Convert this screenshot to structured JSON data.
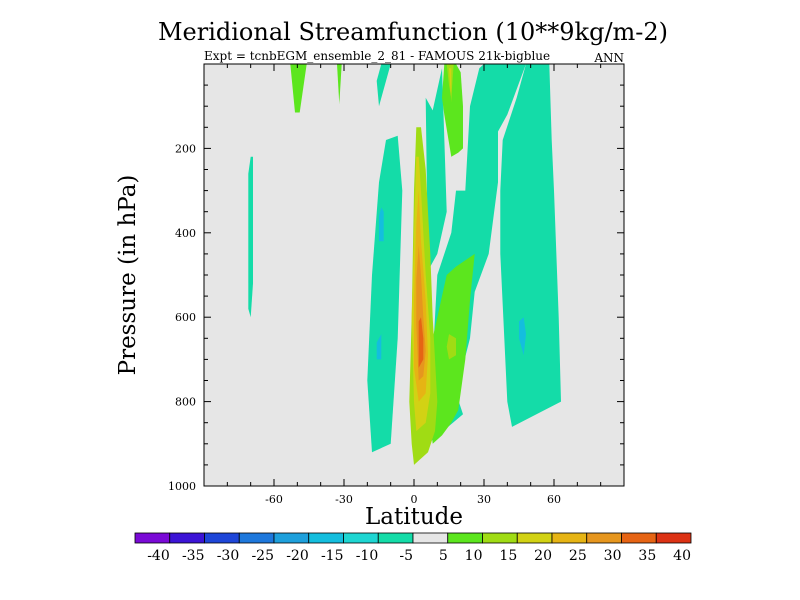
{
  "chart_data": {
    "type": "contour",
    "title": "Meridional Streamfunction (10**9kg/m-2)",
    "subtitle_left": "Expt = tcnbEGM_ensemble_2_81 - FAMOUS 21k-bigblue",
    "subtitle_right": "ANN",
    "xlabel": "Latitude",
    "ylabel": "Pressure (in hPa)",
    "xlim": [
      -90,
      90
    ],
    "ylim": [
      0,
      1000
    ],
    "y_inverted": true,
    "x_ticks": [
      {
        "value": -60,
        "label": "-60"
      },
      {
        "value": -30,
        "label": "-30"
      },
      {
        "value": 0,
        "label": "0"
      },
      {
        "value": 30,
        "label": "30"
      },
      {
        "value": 60,
        "label": "60"
      }
    ],
    "y_ticks": [
      {
        "value": 200,
        "label": "200"
      },
      {
        "value": 400,
        "label": "400"
      },
      {
        "value": 600,
        "label": "600"
      },
      {
        "value": 800,
        "label": "800"
      },
      {
        "value": 1000,
        "label": "1000"
      }
    ],
    "background_color": "#e6e6e6",
    "colorbar": {
      "levels": [
        "-40",
        "-35",
        "-30",
        "-25",
        "-20",
        "-15",
        "-10",
        "-5",
        "5",
        "10",
        "15",
        "20",
        "25",
        "30",
        "35",
        "40"
      ],
      "colors": [
        "#7a0ad6",
        "#3c14d6",
        "#1e46d8",
        "#1e78dc",
        "#1ea0dc",
        "#14bede",
        "#1ed6d2",
        "#14dca8",
        "#e6e6e6",
        "#5ce61e",
        "#a0dc14",
        "#d2d214",
        "#e6b414",
        "#e6961e",
        "#e66414",
        "#dc3214"
      ]
    },
    "regions": [
      {
        "color": "#14dca8",
        "points": [
          [
            -18,
            920
          ],
          [
            -10,
            900
          ],
          [
            -7,
            650
          ],
          [
            -5,
            300
          ],
          [
            -7,
            170
          ],
          [
            -12,
            180
          ],
          [
            -15,
            280
          ],
          [
            -18,
            500
          ],
          [
            -20,
            750
          ]
        ]
      },
      {
        "color": "#14dca8",
        "points": [
          [
            -15,
            100
          ],
          [
            -10,
            0
          ],
          [
            -14,
            0
          ],
          [
            -16,
            40
          ]
        ]
      },
      {
        "color": "#14dca8",
        "points": [
          [
            6,
            490
          ],
          [
            10,
            450
          ],
          [
            14,
            350
          ],
          [
            12,
            10
          ],
          [
            8,
            110
          ],
          [
            5,
            80
          ]
        ]
      },
      {
        "color": "#14dca8",
        "points": [
          [
            21,
            830
          ],
          [
            18,
            780
          ],
          [
            24,
            650
          ],
          [
            26,
            540
          ],
          [
            32,
            450
          ],
          [
            36,
            280
          ],
          [
            36,
            160
          ],
          [
            40,
            120
          ],
          [
            48,
            0
          ],
          [
            30,
            0
          ],
          [
            28,
            10
          ],
          [
            24,
            100
          ],
          [
            22,
            300
          ],
          [
            18,
            300
          ],
          [
            16,
            400
          ],
          [
            10,
            500
          ],
          [
            8,
            700
          ],
          [
            6,
            900
          ]
        ]
      },
      {
        "color": "#14dca8",
        "points": [
          [
            42,
            860
          ],
          [
            56,
            820
          ],
          [
            63,
            800
          ],
          [
            62,
            600
          ],
          [
            60,
            300
          ],
          [
            59,
            180
          ],
          [
            58,
            0
          ],
          [
            48,
            0
          ],
          [
            44,
            80
          ],
          [
            38,
            180
          ],
          [
            37,
            300
          ],
          [
            37,
            450
          ],
          [
            40,
            800
          ]
        ]
      },
      {
        "color": "#14dca8",
        "points": [
          [
            -71,
            580
          ],
          [
            -70,
            600
          ],
          [
            -69,
            520
          ],
          [
            -69,
            400
          ],
          [
            -69,
            250
          ],
          [
            -69,
            220
          ],
          [
            -70,
            220
          ],
          [
            -71,
            260
          ],
          [
            -71,
            420
          ]
        ]
      },
      {
        "color": "#14bede",
        "points": [
          [
            -15,
            360
          ],
          [
            -14,
            340
          ],
          [
            -13,
            350
          ],
          [
            -13,
            420
          ],
          [
            -15,
            420
          ]
        ]
      },
      {
        "color": "#14bede",
        "points": [
          [
            -16,
            660
          ],
          [
            -14,
            640
          ],
          [
            -14,
            700
          ],
          [
            -16,
            700
          ]
        ]
      },
      {
        "color": "#14bede",
        "points": [
          [
            45,
            610
          ],
          [
            47,
            600
          ],
          [
            48,
            640
          ],
          [
            47,
            690
          ],
          [
            45,
            650
          ]
        ]
      },
      {
        "color": "#5ce61e",
        "points": [
          [
            8,
            900
          ],
          [
            12,
            880
          ],
          [
            16,
            850
          ],
          [
            19,
            820
          ],
          [
            22,
            700
          ],
          [
            24,
            560
          ],
          [
            26,
            450
          ],
          [
            18,
            480
          ],
          [
            14,
            500
          ],
          [
            12,
            550
          ],
          [
            8,
            650
          ],
          [
            6,
            800
          ]
        ]
      },
      {
        "color": "#5ce61e",
        "points": [
          [
            19,
            210
          ],
          [
            21,
            200
          ],
          [
            21,
            100
          ],
          [
            20,
            20
          ],
          [
            18,
            0
          ],
          [
            13,
            0
          ],
          [
            12,
            80
          ],
          [
            13,
            120
          ],
          [
            16,
            220
          ]
        ]
      },
      {
        "color": "#5ce61e",
        "points": [
          [
            -51,
            115
          ],
          [
            -49,
            115
          ],
          [
            -46,
            0
          ],
          [
            -53,
            0
          ]
        ]
      },
      {
        "color": "#5ce61e",
        "points": [
          [
            -32,
            95
          ],
          [
            -31,
            0
          ],
          [
            -33,
            0
          ]
        ]
      },
      {
        "color": "#a0dc14",
        "points": [
          [
            15,
            700
          ],
          [
            18,
            690
          ],
          [
            18,
            650
          ],
          [
            15,
            640
          ],
          [
            14,
            670
          ]
        ]
      },
      {
        "color": "#a0dc14",
        "points": [
          [
            0,
            950
          ],
          [
            6,
            920
          ],
          [
            9,
            870
          ],
          [
            10,
            800
          ],
          [
            9,
            700
          ],
          [
            8,
            600
          ],
          [
            7,
            450
          ],
          [
            5,
            250
          ],
          [
            3,
            150
          ],
          [
            1,
            150
          ],
          [
            0,
            300
          ],
          [
            -1,
            600
          ],
          [
            -2,
            800
          ],
          [
            -1,
            900
          ]
        ]
      },
      {
        "color": "#a0dc14",
        "points": [
          [
            16,
            80
          ],
          [
            17,
            0
          ],
          [
            14,
            0
          ],
          [
            15,
            50
          ]
        ]
      },
      {
        "color": "#d2d214",
        "points": [
          [
            1,
            870
          ],
          [
            5,
            850
          ],
          [
            7,
            780
          ],
          [
            7,
            650
          ],
          [
            5,
            500
          ],
          [
            3,
            300
          ],
          [
            2,
            220
          ],
          [
            1,
            220
          ],
          [
            0,
            400
          ],
          [
            -1,
            600
          ],
          [
            0,
            800
          ]
        ]
      },
      {
        "color": "#d2d214",
        "points": [
          [
            16,
            90
          ],
          [
            16,
            10
          ],
          [
            15,
            10
          ]
        ]
      },
      {
        "color": "#e6b414",
        "points": [
          [
            2,
            800
          ],
          [
            5,
            780
          ],
          [
            6,
            690
          ],
          [
            5,
            560
          ],
          [
            3,
            420
          ],
          [
            2,
            300
          ],
          [
            1,
            380
          ],
          [
            0,
            560
          ],
          [
            0,
            720
          ]
        ]
      },
      {
        "color": "#e6961e",
        "points": [
          [
            2,
            750
          ],
          [
            4,
            740
          ],
          [
            5,
            680
          ],
          [
            4,
            600
          ],
          [
            3,
            500
          ],
          [
            2,
            430
          ],
          [
            1,
            510
          ],
          [
            1,
            620
          ]
        ]
      },
      {
        "color": "#e66414",
        "points": [
          [
            2,
            720
          ],
          [
            4,
            700
          ],
          [
            4,
            650
          ],
          [
            3,
            600
          ],
          [
            2,
            610
          ],
          [
            2,
            680
          ]
        ]
      }
    ]
  }
}
